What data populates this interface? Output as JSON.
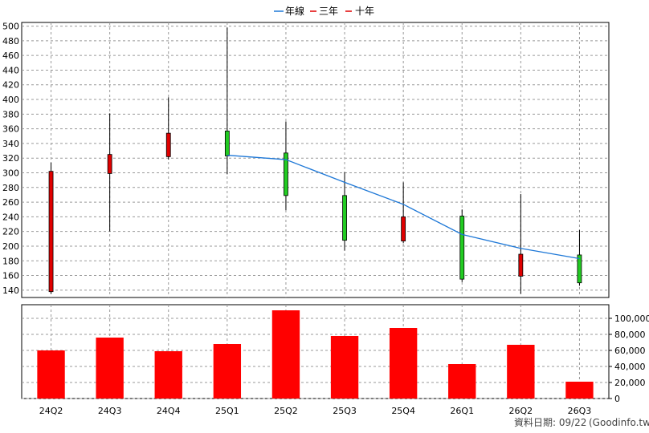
{
  "legend": [
    {
      "label": "年線",
      "color": "#1e78d7"
    },
    {
      "label": "三年",
      "color": "#e00000"
    },
    {
      "label": "十年",
      "color": "#e00000"
    }
  ],
  "footer": {
    "date_label": "資料日期: 09/22",
    "source": "(Goodinfo.tw)"
  },
  "chart_data": [
    {
      "type": "candlestick",
      "categories": [
        "24Q2",
        "24Q3",
        "24Q4",
        "25Q1",
        "25Q2",
        "25Q3",
        "25Q4",
        "26Q1",
        "26Q2",
        "26Q3"
      ],
      "candles": [
        {
          "open": 138,
          "close": 302,
          "high": 314,
          "low": 135
        },
        {
          "open": 299,
          "close": 325,
          "high": 381,
          "low": 220
        },
        {
          "open": 322,
          "close": 354,
          "high": 403,
          "low": 318
        },
        {
          "open": 357,
          "close": 323,
          "high": 498,
          "low": 298
        },
        {
          "open": 327,
          "close": 269,
          "high": 370,
          "low": 249
        },
        {
          "open": 269,
          "close": 208,
          "high": 301,
          "low": 194
        },
        {
          "open": 207,
          "close": 240,
          "high": 287,
          "low": 204
        },
        {
          "open": 241,
          "close": 155,
          "high": 250,
          "low": 151
        },
        {
          "open": 159,
          "close": 189,
          "high": 271,
          "low": 135
        },
        {
          "open": 188,
          "close": 150,
          "high": 222,
          "low": 146
        }
      ],
      "up_color": "#e00000",
      "down_color": "#22cc22",
      "series": [
        {
          "name": "年線",
          "color": "#1e78d7",
          "x": [
            "25Q1",
            "25Q2",
            "25Q3",
            "25Q4",
            "26Q1",
            "26Q2",
            "26Q3"
          ],
          "values": [
            324,
            318,
            287,
            257,
            216,
            197,
            183
          ]
        }
      ],
      "y_ticks": [
        140,
        160,
        180,
        200,
        220,
        240,
        260,
        280,
        300,
        320,
        340,
        360,
        380,
        400,
        420,
        440,
        460,
        480,
        500
      ],
      "ylim": [
        130,
        505
      ],
      "grid": true
    },
    {
      "type": "bar",
      "categories": [
        "24Q2",
        "24Q3",
        "24Q4",
        "25Q1",
        "25Q2",
        "25Q3",
        "25Q4",
        "26Q1",
        "26Q2",
        "26Q3"
      ],
      "values": [
        60000,
        76000,
        59000,
        68000,
        110000,
        78000,
        88000,
        43000,
        67000,
        21000
      ],
      "color": "#ff0000",
      "y_ticks": [
        0,
        20000,
        40000,
        60000,
        80000,
        100000
      ],
      "y_tick_labels": [
        "0",
        "20,000",
        "40,000",
        "60,000",
        "80,000",
        "100,000"
      ],
      "ylim": [
        0,
        117000
      ],
      "grid": true
    }
  ]
}
